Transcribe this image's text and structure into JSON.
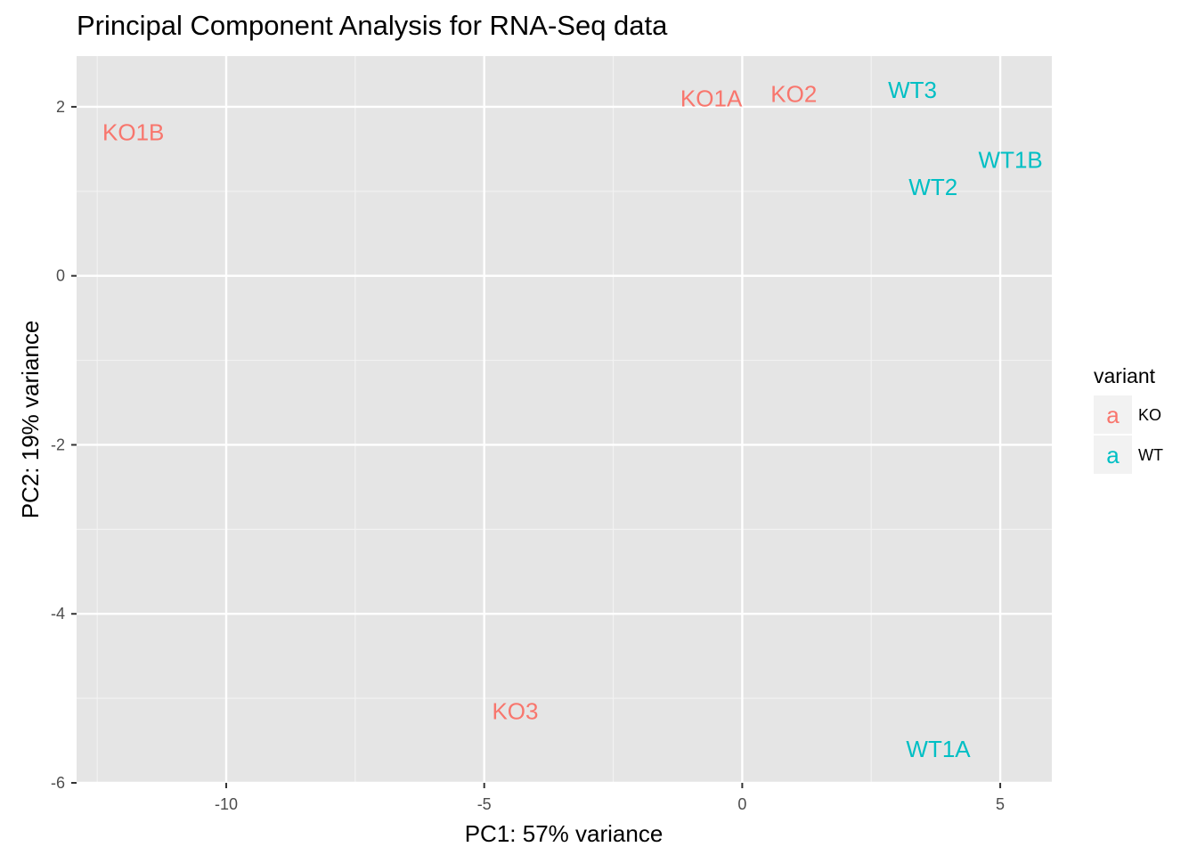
{
  "chart_data": {
    "type": "scatter",
    "title": "Principal Component Analysis for RNA-Seq data",
    "xlabel": "PC1: 57% variance",
    "ylabel": "PC2: 19% variance",
    "xlim": [
      -12.9,
      6.0
    ],
    "ylim": [
      -6.0,
      2.6
    ],
    "xticks": [
      -10,
      -5,
      0,
      5
    ],
    "yticks": [
      2,
      0,
      -2,
      -4,
      -6
    ],
    "xtick_labels": [
      "-10",
      "-5",
      "0",
      "5"
    ],
    "ytick_labels": [
      "2",
      "0",
      "-2",
      "-4",
      "-6"
    ],
    "grid": true,
    "legend": {
      "title": "variant",
      "position": "right",
      "symbol": "a",
      "entries": [
        {
          "label": "KO",
          "color": "#F8766D"
        },
        {
          "label": "WT",
          "color": "#00BFC4"
        }
      ]
    },
    "series": [
      {
        "name": "KO",
        "color": "#F8766D",
        "points": [
          {
            "label": "KO1B",
            "x": -11.8,
            "y": 1.7
          },
          {
            "label": "KO1A",
            "x": -0.6,
            "y": 2.1
          },
          {
            "label": "KO2",
            "x": 1.0,
            "y": 2.15
          },
          {
            "label": "KO3",
            "x": -4.4,
            "y": -5.15
          }
        ]
      },
      {
        "name": "WT",
        "color": "#00BFC4",
        "points": [
          {
            "label": "WT3",
            "x": 3.3,
            "y": 2.2
          },
          {
            "label": "WT1B",
            "x": 5.2,
            "y": 1.37
          },
          {
            "label": "WT2",
            "x": 3.7,
            "y": 1.05
          },
          {
            "label": "WT1A",
            "x": 3.8,
            "y": -5.6
          }
        ]
      }
    ]
  }
}
